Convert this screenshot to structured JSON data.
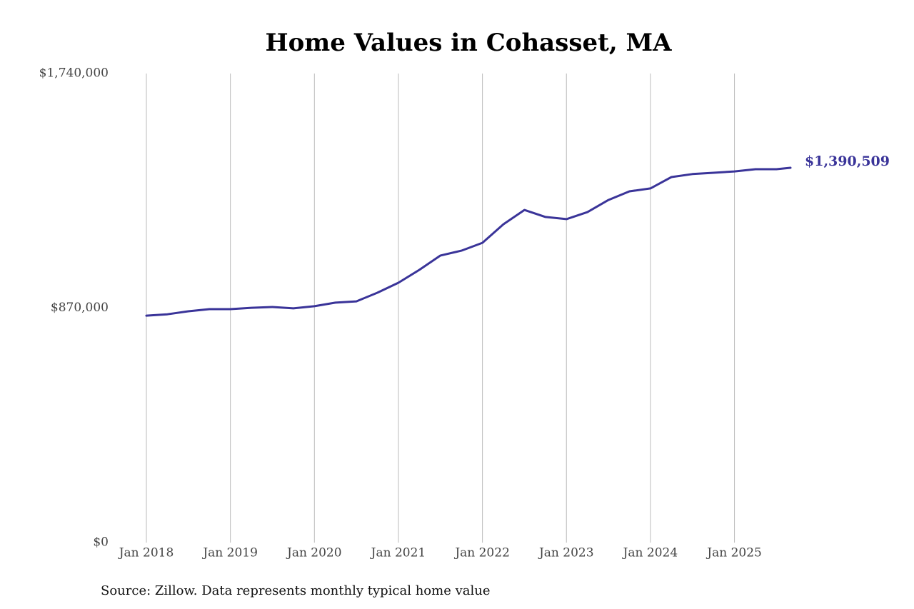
{
  "chart_data": {
    "type": "line",
    "title": "Home Values in Cohasset, MA",
    "source": "Source: Zillow. Data represents monthly typical home value",
    "x": [
      "2018-01",
      "2018-04",
      "2018-07",
      "2018-10",
      "2019-01",
      "2019-04",
      "2019-07",
      "2019-10",
      "2020-01",
      "2020-04",
      "2020-07",
      "2020-10",
      "2021-01",
      "2021-04",
      "2021-07",
      "2021-10",
      "2022-01",
      "2022-04",
      "2022-07",
      "2022-10",
      "2023-01",
      "2023-04",
      "2023-07",
      "2023-10",
      "2024-01",
      "2024-04",
      "2024-07",
      "2024-10",
      "2025-01",
      "2025-04",
      "2025-07",
      "2025-09"
    ],
    "values": [
      842000,
      847000,
      858000,
      866000,
      866000,
      871000,
      874000,
      869000,
      877000,
      890000,
      895000,
      927000,
      964000,
      1012000,
      1065000,
      1083000,
      1112000,
      1181000,
      1234000,
      1208000,
      1200000,
      1226000,
      1271000,
      1303000,
      1314000,
      1356000,
      1367000,
      1372000,
      1377000,
      1385000,
      1385000,
      1390509
    ],
    "value_labels": [
      null,
      null,
      null,
      null,
      null,
      null,
      null,
      null,
      null,
      null,
      null,
      null,
      null,
      null,
      null,
      null,
      null,
      null,
      null,
      null,
      null,
      null,
      null,
      null,
      null,
      null,
      null,
      null,
      null,
      null,
      null,
      "$1,390,509"
    ],
    "color": "#3a3499",
    "xlim": [
      "2018-01",
      "2025-09"
    ],
    "xticks": [
      {
        "value": "2018-01",
        "label": "Jan 2018"
      },
      {
        "value": "2019-01",
        "label": "Jan 2019"
      },
      {
        "value": "2020-01",
        "label": "Jan 2020"
      },
      {
        "value": "2021-01",
        "label": "Jan 2021"
      },
      {
        "value": "2022-01",
        "label": "Jan 2022"
      },
      {
        "value": "2023-01",
        "label": "Jan 2023"
      },
      {
        "value": "2024-01",
        "label": "Jan 2024"
      },
      {
        "value": "2025-01",
        "label": "Jan 2025"
      }
    ],
    "ylim": [
      0,
      1740000
    ],
    "yticks": [
      {
        "value": 0,
        "label": "$0"
      },
      {
        "value": 870000,
        "label": "$870,000"
      },
      {
        "value": 1740000,
        "label": "$1,740,000"
      }
    ],
    "grid": "x"
  }
}
